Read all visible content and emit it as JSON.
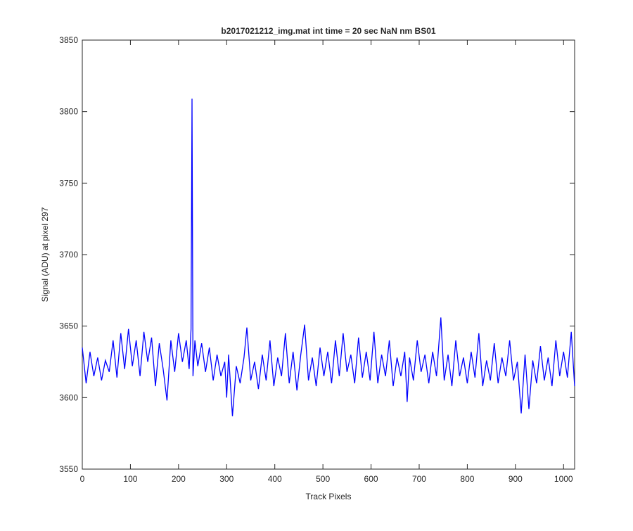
{
  "chart_data": {
    "type": "line",
    "title": "b2017021212_img.mat int time = 20 sec  NaN nm BS01",
    "xlabel": "Track Pixels",
    "ylabel": "Signal (ADU) at pixel 297",
    "x": [
      0,
      8,
      16,
      24,
      32,
      40,
      48,
      56,
      64,
      72,
      80,
      88,
      96,
      104,
      112,
      120,
      128,
      136,
      144,
      152,
      160,
      168,
      176,
      184,
      192,
      200,
      208,
      216,
      222,
      226,
      228,
      230,
      234,
      240,
      248,
      256,
      264,
      272,
      280,
      288,
      296,
      300,
      304,
      312,
      320,
      328,
      336,
      342,
      350,
      358,
      366,
      374,
      382,
      390,
      398,
      406,
      414,
      422,
      430,
      438,
      446,
      454,
      462,
      470,
      478,
      486,
      494,
      502,
      510,
      518,
      526,
      534,
      542,
      550,
      558,
      566,
      574,
      582,
      590,
      598,
      606,
      614,
      622,
      630,
      638,
      646,
      654,
      662,
      670,
      675,
      680,
      688,
      696,
      704,
      712,
      720,
      728,
      736,
      745,
      752,
      760,
      768,
      776,
      784,
      792,
      800,
      808,
      816,
      824,
      832,
      840,
      848,
      856,
      864,
      872,
      880,
      888,
      896,
      904,
      912,
      920,
      928,
      936,
      944,
      952,
      960,
      968,
      976,
      984,
      992,
      1000,
      1008,
      1016,
      1023
    ],
    "series": [
      {
        "name": "signal",
        "color": "#0000ff",
        "values": [
          3635,
          3610,
          3632,
          3615,
          3628,
          3612,
          3626,
          3618,
          3640,
          3614,
          3645,
          3620,
          3648,
          3622,
          3640,
          3615,
          3646,
          3625,
          3642,
          3608,
          3638,
          3620,
          3598,
          3640,
          3618,
          3645,
          3625,
          3640,
          3620,
          3648,
          3809,
          3615,
          3640,
          3622,
          3638,
          3618,
          3635,
          3612,
          3630,
          3615,
          3625,
          3600,
          3630,
          3587,
          3622,
          3610,
          3628,
          3649,
          3612,
          3625,
          3606,
          3630,
          3612,
          3640,
          3608,
          3628,
          3615,
          3645,
          3610,
          3632,
          3605,
          3630,
          3651,
          3612,
          3628,
          3608,
          3635,
          3615,
          3632,
          3610,
          3640,
          3615,
          3645,
          3618,
          3630,
          3610,
          3642,
          3614,
          3632,
          3612,
          3646,
          3610,
          3630,
          3615,
          3640,
          3608,
          3628,
          3615,
          3632,
          3597,
          3628,
          3612,
          3640,
          3618,
          3630,
          3610,
          3632,
          3615,
          3656,
          3612,
          3630,
          3608,
          3640,
          3615,
          3628,
          3610,
          3632,
          3614,
          3645,
          3608,
          3626,
          3612,
          3638,
          3610,
          3628,
          3615,
          3640,
          3612,
          3625,
          3589,
          3630,
          3592,
          3626,
          3610,
          3636,
          3612,
          3628,
          3608,
          3640,
          3615,
          3632,
          3614,
          3646,
          3608
        ]
      }
    ],
    "xlim": [
      0,
      1023
    ],
    "xticks": [
      0,
      100,
      200,
      300,
      400,
      500,
      600,
      700,
      800,
      900,
      1000
    ],
    "ylim": [
      3550,
      3850
    ],
    "yticks": [
      3550,
      3600,
      3650,
      3700,
      3750,
      3800,
      3850
    ]
  }
}
